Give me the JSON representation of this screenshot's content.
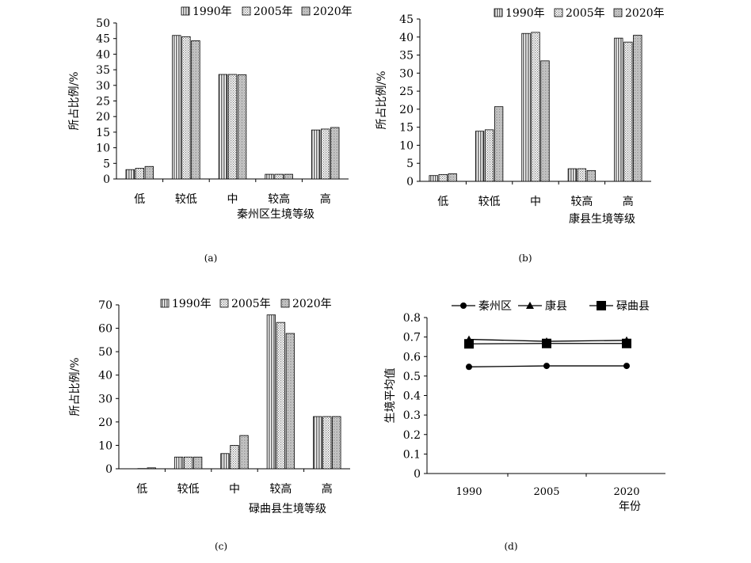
{
  "legend_swatches": [
    {
      "series": "1990年",
      "pattern": "vertical-lines",
      "color": "#7a7a7a"
    },
    {
      "series": "2005年",
      "pattern": "dots",
      "color": "#9a9a9a"
    },
    {
      "series": "2020年",
      "pattern": "dense-dots",
      "color": "#8a8a8a"
    }
  ],
  "chart_data": [
    {
      "type": "bar",
      "panel_label": "(a)",
      "categories": [
        "低",
        "较低",
        "中",
        "较高",
        "高"
      ],
      "series": [
        {
          "name": "1990年",
          "values": [
            3.0,
            46.0,
            33.5,
            1.5,
            15.7
          ]
        },
        {
          "name": "2005年",
          "values": [
            3.4,
            45.6,
            33.5,
            1.5,
            16.0
          ]
        },
        {
          "name": "2020年",
          "values": [
            4.0,
            44.3,
            33.4,
            1.5,
            16.5
          ]
        }
      ],
      "xlabel": "秦州区生境等级",
      "ylabel": "所占比例/%",
      "ylim": [
        0,
        50
      ],
      "yticks": [
        0,
        5,
        10,
        15,
        20,
        25,
        30,
        35,
        40,
        45,
        50
      ],
      "legend_position": "top"
    },
    {
      "type": "bar",
      "panel_label": "(b)",
      "categories": [
        "低",
        "较低",
        "中",
        "较高",
        "高"
      ],
      "series": [
        {
          "name": "1990年",
          "values": [
            1.6,
            13.9,
            41.0,
            3.5,
            39.7
          ]
        },
        {
          "name": "2005年",
          "values": [
            1.9,
            14.3,
            41.3,
            3.5,
            38.6
          ]
        },
        {
          "name": "2020年",
          "values": [
            2.1,
            20.7,
            33.4,
            3.0,
            40.5
          ]
        }
      ],
      "xlabel": "康县生境等级",
      "ylabel": "所占比例/%",
      "ylim": [
        0,
        45
      ],
      "yticks": [
        0,
        5,
        10,
        15,
        20,
        25,
        30,
        35,
        40,
        45
      ],
      "legend_position": "top"
    },
    {
      "type": "bar",
      "panel_label": "(c)",
      "categories": [
        "低",
        "较低",
        "中",
        "较高",
        "高"
      ],
      "series": [
        {
          "name": "1990年",
          "values": [
            0.0,
            5.0,
            6.5,
            65.7,
            22.3
          ]
        },
        {
          "name": "2005年",
          "values": [
            0.1,
            5.0,
            10.0,
            62.5,
            22.3
          ]
        },
        {
          "name": "2020年",
          "values": [
            0.4,
            5.0,
            14.2,
            57.8,
            22.3
          ]
        }
      ],
      "xlabel": "碌曲县生境等级",
      "ylabel": "所占比例/%",
      "ylim": [
        0,
        70
      ],
      "yticks": [
        0,
        10,
        20,
        30,
        40,
        50,
        60,
        70
      ],
      "legend_position": "top"
    },
    {
      "type": "line",
      "panel_label": "(d)",
      "x": [
        "1990",
        "2005",
        "2020"
      ],
      "series": [
        {
          "name": "秦州区",
          "marker": "circle",
          "values": [
            0.547,
            0.552,
            0.552
          ]
        },
        {
          "name": "康县",
          "marker": "triangle",
          "values": [
            0.688,
            0.678,
            0.683
          ]
        },
        {
          "name": "碌曲县",
          "marker": "square",
          "values": [
            0.665,
            0.667,
            0.667
          ]
        }
      ],
      "xlabel": "年份",
      "ylabel": "生境平均值",
      "ylim": [
        0,
        0.8
      ],
      "yticks": [
        "0",
        "0.1",
        "0.2",
        "0.3",
        "0.4",
        "0.5",
        "0.6",
        "0.7",
        "0.8"
      ],
      "legend_position": "top"
    }
  ]
}
